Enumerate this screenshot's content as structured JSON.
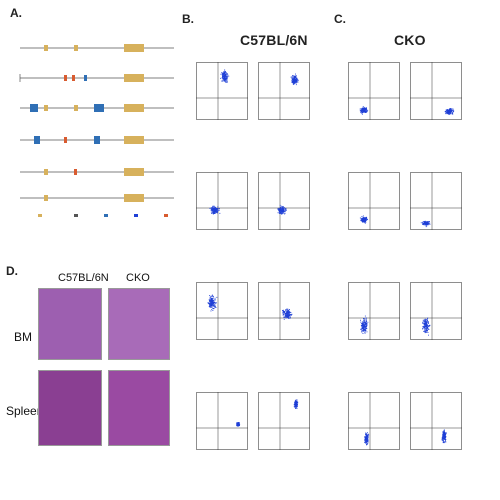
{
  "panels": {
    "a": {
      "letter": "A."
    },
    "b": {
      "letter": "B.",
      "title": "C57BL/6N"
    },
    "c": {
      "letter": "C.",
      "title": "CKO"
    },
    "d": {
      "letter": "D.",
      "col_wt": "C57BL/6N",
      "col_cko": "CKO",
      "row_bm": "BM",
      "row_spleen": "Spleen"
    }
  },
  "colors": {
    "dot": "#1f3fd6",
    "exon": "#d7b15c",
    "cassette": "#2f6fb5",
    "he_purple": "#7a3f95",
    "he_pink": "#c98ac2"
  }
}
